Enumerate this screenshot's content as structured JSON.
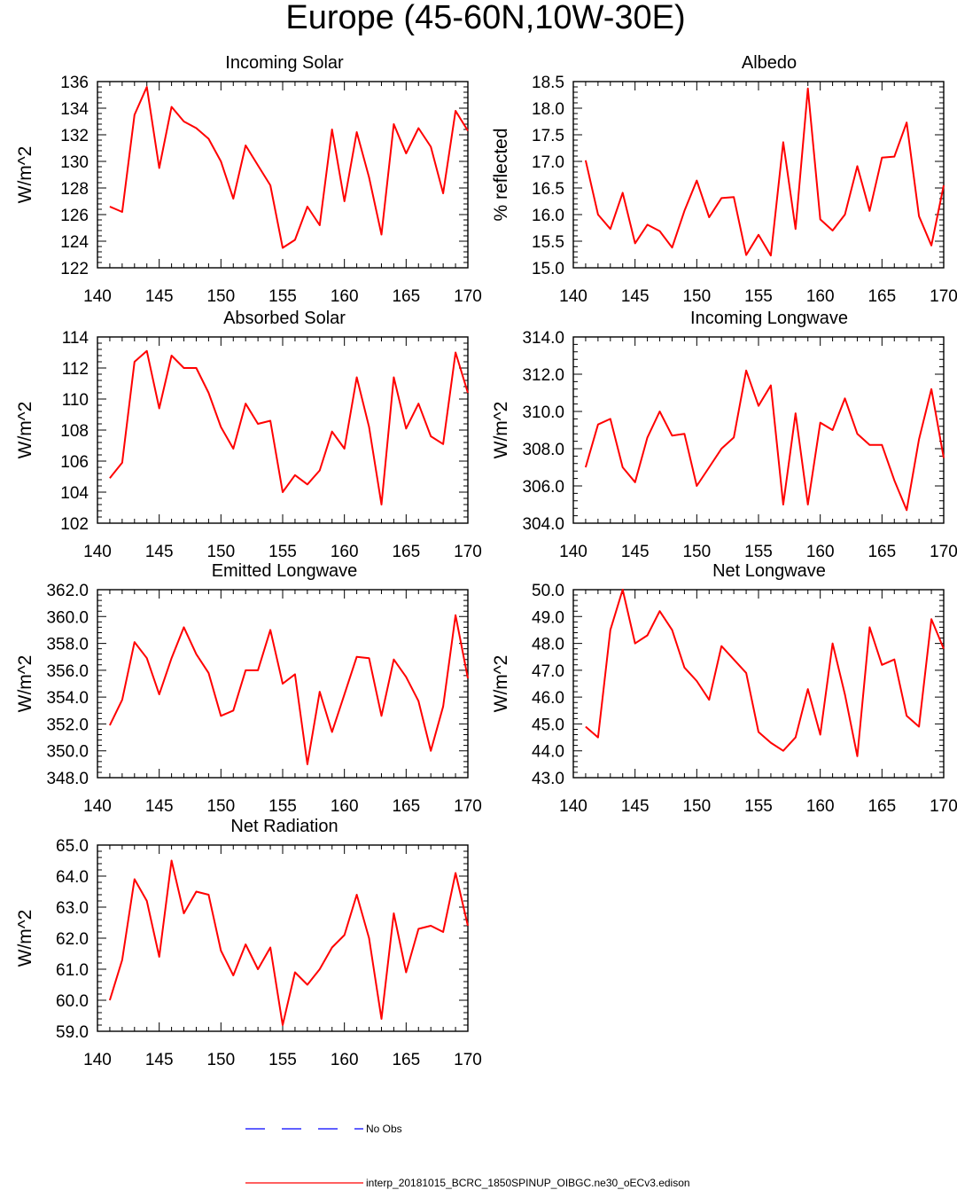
{
  "figure": {
    "title": "Europe (45-60N,10W-30E)",
    "line_color": "#ff0000",
    "obs_color": "#0000ff"
  },
  "legend": {
    "obs_label": "No Obs",
    "model_label": "interp_20181015_BCRC_1850SPINUP_OIBGC.ne30_oECv3.edison"
  },
  "chart_data": [
    {
      "type": "line",
      "title": "Incoming Solar",
      "ylabel": "W/m^2",
      "xlim": [
        140,
        170
      ],
      "ylim": [
        122,
        136
      ],
      "xticks": [
        140,
        145,
        150,
        155,
        160,
        165,
        170
      ],
      "xtick_labels": [
        "140",
        "145",
        "150",
        "155",
        "160",
        "165",
        "170"
      ],
      "yticks": [
        122,
        124,
        126,
        128,
        130,
        132,
        134,
        136
      ],
      "ytick_labels": [
        "122",
        "124",
        "126",
        "128",
        "130",
        "132",
        "134",
        "136"
      ],
      "x": [
        141,
        142,
        143,
        144,
        145,
        146,
        147,
        148,
        149,
        150,
        151,
        152,
        153,
        154,
        155,
        156,
        157,
        158,
        159,
        160,
        161,
        162,
        163,
        164,
        165,
        166,
        167,
        168,
        169,
        170
      ],
      "values": [
        126.6,
        126.2,
        133.5,
        135.6,
        129.5,
        134.1,
        133.0,
        132.5,
        131.7,
        130.0,
        127.2,
        131.2,
        129.7,
        128.2,
        123.5,
        124.1,
        126.6,
        125.2,
        132.4,
        127.0,
        132.2,
        128.8,
        124.5,
        132.8,
        130.6,
        132.5,
        131.1,
        127.6,
        133.8,
        132.3
      ],
      "series_name": "interp_20181015_BCRC_1850SPINUP_OIBGC.ne30_oECv3.edison"
    },
    {
      "type": "line",
      "title": "Albedo",
      "ylabel": "% reflected",
      "xlim": [
        140,
        170
      ],
      "ylim": [
        15.0,
        18.5
      ],
      "xticks": [
        140,
        145,
        150,
        155,
        160,
        165,
        170
      ],
      "xtick_labels": [
        "140",
        "145",
        "150",
        "155",
        "160",
        "165",
        "170"
      ],
      "yticks": [
        15.0,
        15.5,
        16.0,
        16.5,
        17.0,
        17.5,
        18.0,
        18.5
      ],
      "ytick_labels": [
        "15.0",
        "15.5",
        "16.0",
        "16.5",
        "17.0",
        "17.5",
        "18.0",
        "18.5"
      ],
      "x": [
        141,
        142,
        143,
        144,
        145,
        146,
        147,
        148,
        149,
        150,
        151,
        152,
        153,
        154,
        155,
        156,
        157,
        158,
        159,
        160,
        161,
        162,
        163,
        164,
        165,
        166,
        167,
        168,
        169,
        170
      ],
      "values": [
        17.02,
        16.0,
        15.73,
        16.41,
        15.46,
        15.81,
        15.69,
        15.38,
        16.07,
        16.64,
        15.95,
        16.31,
        16.33,
        15.24,
        15.62,
        15.23,
        17.36,
        15.73,
        18.37,
        15.91,
        15.7,
        16.0,
        16.91,
        16.07,
        17.07,
        17.09,
        17.73,
        15.97,
        15.42,
        16.55
      ],
      "series_name": "interp_20181015_BCRC_1850SPINUP_OIBGC.ne30_oECv3.edison"
    },
    {
      "type": "line",
      "title": "Absorbed Solar",
      "ylabel": "W/m^2",
      "xlim": [
        140,
        170
      ],
      "ylim": [
        102,
        114
      ],
      "xticks": [
        140,
        145,
        150,
        155,
        160,
        165,
        170
      ],
      "xtick_labels": [
        "140",
        "145",
        "150",
        "155",
        "160",
        "165",
        "170"
      ],
      "yticks": [
        102,
        104,
        106,
        108,
        110,
        112,
        114
      ],
      "ytick_labels": [
        "102",
        "104",
        "106",
        "108",
        "110",
        "112",
        "114"
      ],
      "x": [
        141,
        142,
        143,
        144,
        145,
        146,
        147,
        148,
        149,
        150,
        151,
        152,
        153,
        154,
        155,
        156,
        157,
        158,
        159,
        160,
        161,
        162,
        163,
        164,
        165,
        166,
        167,
        168,
        169,
        170
      ],
      "values": [
        104.9,
        105.9,
        112.4,
        113.1,
        109.4,
        112.8,
        112.0,
        112.0,
        110.4,
        108.2,
        106.8,
        109.7,
        108.4,
        108.6,
        104.0,
        105.1,
        104.5,
        105.4,
        107.9,
        106.8,
        111.4,
        108.2,
        103.2,
        111.4,
        108.1,
        109.7,
        107.6,
        107.1,
        113.0,
        110.4
      ],
      "series_name": "interp_20181015_BCRC_1850SPINUP_OIBGC.ne30_oECv3.edison"
    },
    {
      "type": "line",
      "title": "Incoming Longwave",
      "ylabel": "W/m^2",
      "xlim": [
        140,
        170
      ],
      "ylim": [
        304.0,
        314.0
      ],
      "xticks": [
        140,
        145,
        150,
        155,
        160,
        165,
        170
      ],
      "xtick_labels": [
        "140",
        "145",
        "150",
        "155",
        "160",
        "165",
        "170"
      ],
      "yticks": [
        304.0,
        306.0,
        308.0,
        310.0,
        312.0,
        314.0
      ],
      "ytick_labels": [
        "304.0",
        "306.0",
        "308.0",
        "310.0",
        "312.0",
        "314.0"
      ],
      "x": [
        141,
        142,
        143,
        144,
        145,
        146,
        147,
        148,
        149,
        150,
        151,
        152,
        153,
        154,
        155,
        156,
        157,
        158,
        159,
        160,
        161,
        162,
        163,
        164,
        165,
        166,
        167,
        168,
        169,
        170
      ],
      "values": [
        307.0,
        309.3,
        309.6,
        307.0,
        306.2,
        308.6,
        310.0,
        308.7,
        308.8,
        306.0,
        307.0,
        308.0,
        308.6,
        312.2,
        310.3,
        311.4,
        305.0,
        309.9,
        305.0,
        309.4,
        309.0,
        310.7,
        308.8,
        308.2,
        308.2,
        306.3,
        304.7,
        308.5,
        311.2,
        307.5
      ],
      "series_name": "interp_20181015_BCRC_1850SPINUP_OIBGC.ne30_oECv3.edison"
    },
    {
      "type": "line",
      "title": "Emitted Longwave",
      "ylabel": "W/m^2",
      "xlim": [
        140,
        170
      ],
      "ylim": [
        348.0,
        362.0
      ],
      "xticks": [
        140,
        145,
        150,
        155,
        160,
        165,
        170
      ],
      "xtick_labels": [
        "140",
        "145",
        "150",
        "155",
        "160",
        "165",
        "170"
      ],
      "yticks": [
        348.0,
        350.0,
        352.0,
        354.0,
        356.0,
        358.0,
        360.0,
        362.0
      ],
      "ytick_labels": [
        "348.0",
        "350.0",
        "352.0",
        "354.0",
        "356.0",
        "358.0",
        "360.0",
        "362.0"
      ],
      "x": [
        141,
        142,
        143,
        144,
        145,
        146,
        147,
        148,
        149,
        150,
        151,
        152,
        153,
        154,
        155,
        156,
        157,
        158,
        159,
        160,
        161,
        162,
        163,
        164,
        165,
        166,
        167,
        168,
        169,
        170
      ],
      "values": [
        351.9,
        353.8,
        358.1,
        356.9,
        354.2,
        356.9,
        359.2,
        357.2,
        355.8,
        352.6,
        353.0,
        356.0,
        356.0,
        359.0,
        355.0,
        355.7,
        349.0,
        354.4,
        351.4,
        354.2,
        357.0,
        356.9,
        352.6,
        356.8,
        355.5,
        353.7,
        350.0,
        353.3,
        360.1,
        355.4
      ],
      "series_name": "interp_20181015_BCRC_1850SPINUP_OIBGC.ne30_oECv3.edison"
    },
    {
      "type": "line",
      "title": "Net Longwave",
      "ylabel": "W/m^2",
      "xlim": [
        140,
        170
      ],
      "ylim": [
        43.0,
        50.0
      ],
      "xticks": [
        140,
        145,
        150,
        155,
        160,
        165,
        170
      ],
      "xtick_labels": [
        "140",
        "145",
        "150",
        "155",
        "160",
        "165",
        "170"
      ],
      "yticks": [
        43.0,
        44.0,
        45.0,
        46.0,
        47.0,
        48.0,
        49.0,
        50.0
      ],
      "ytick_labels": [
        "43.0",
        "44.0",
        "45.0",
        "46.0",
        "47.0",
        "48.0",
        "49.0",
        "50.0"
      ],
      "x": [
        141,
        142,
        143,
        144,
        145,
        146,
        147,
        148,
        149,
        150,
        151,
        152,
        153,
        154,
        155,
        156,
        157,
        158,
        159,
        160,
        161,
        162,
        163,
        164,
        165,
        166,
        167,
        168,
        169,
        170
      ],
      "values": [
        44.9,
        44.5,
        48.5,
        50.0,
        48.0,
        48.3,
        49.2,
        48.5,
        47.1,
        46.6,
        45.9,
        47.9,
        47.4,
        46.9,
        44.7,
        44.3,
        44.0,
        44.5,
        46.3,
        44.6,
        48.0,
        46.1,
        43.8,
        48.6,
        47.2,
        47.4,
        45.3,
        44.9,
        48.9,
        47.8
      ],
      "series_name": "interp_20181015_BCRC_1850SPINUP_OIBGC.ne30_oECv3.edison"
    },
    {
      "type": "line",
      "title": "Net Radiation",
      "ylabel": "W/m^2",
      "xlim": [
        140,
        170
      ],
      "ylim": [
        59.0,
        65.0
      ],
      "xticks": [
        140,
        145,
        150,
        155,
        160,
        165,
        170
      ],
      "xtick_labels": [
        "140",
        "145",
        "150",
        "155",
        "160",
        "165",
        "170"
      ],
      "yticks": [
        59.0,
        60.0,
        61.0,
        62.0,
        63.0,
        64.0,
        65.0
      ],
      "ytick_labels": [
        "59.0",
        "60.0",
        "61.0",
        "62.0",
        "63.0",
        "64.0",
        "65.0"
      ],
      "x": [
        141,
        142,
        143,
        144,
        145,
        146,
        147,
        148,
        149,
        150,
        151,
        152,
        153,
        154,
        155,
        156,
        157,
        158,
        159,
        160,
        161,
        162,
        163,
        164,
        165,
        166,
        167,
        168,
        169,
        170
      ],
      "values": [
        60.0,
        61.3,
        63.9,
        63.2,
        61.4,
        64.5,
        62.8,
        63.5,
        63.4,
        61.6,
        60.8,
        61.8,
        61.0,
        61.7,
        59.2,
        60.9,
        60.5,
        61.0,
        61.7,
        62.1,
        63.4,
        62.0,
        59.4,
        62.8,
        60.9,
        62.3,
        62.4,
        62.2,
        64.1,
        62.4
      ],
      "series_name": "interp_20181015_BCRC_1850SPINUP_OIBGC.ne30_oECv3.edison"
    }
  ]
}
